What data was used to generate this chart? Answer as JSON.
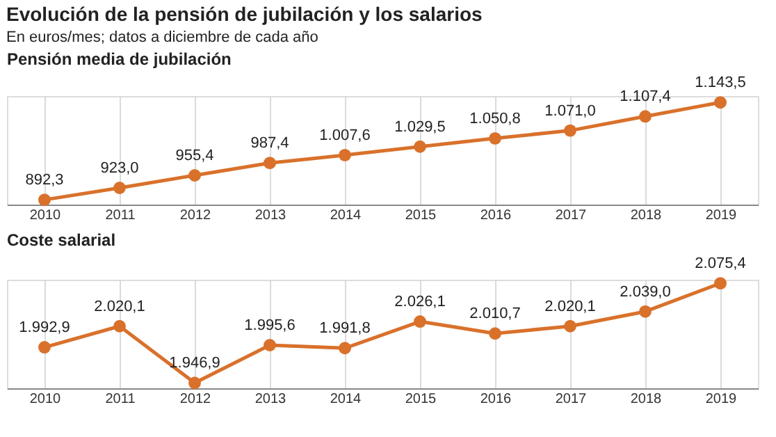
{
  "chart_data": [
    {
      "type": "other",
      "title": "Evolución de la pensión de jubilación y los salarios",
      "subtitle": "En euros/mes; datos a diciembre de cada año"
    },
    {
      "type": "line",
      "title": "Pensión media de jubilación",
      "categories": [
        "2010",
        "2011",
        "2012",
        "2013",
        "2014",
        "2015",
        "2016",
        "2017",
        "2018",
        "2019"
      ],
      "values": [
        892.3,
        923.0,
        955.4,
        987.4,
        1007.6,
        1029.5,
        1050.8,
        1071.0,
        1107.4,
        1143.5
      ],
      "value_labels": [
        "892,3",
        "923,0",
        "955,4",
        "987,4",
        "1.007,6",
        "1.029,5",
        "1.050,8",
        "1.071,0",
        "1.107,4",
        "1.143,5"
      ],
      "color": "#d9712b",
      "marker": "circle",
      "grid": "x"
    },
    {
      "type": "line",
      "title": "Coste salarial",
      "categories": [
        "2010",
        "2011",
        "2012",
        "2013",
        "2014",
        "2015",
        "2016",
        "2017",
        "2018",
        "2019"
      ],
      "values": [
        1992.9,
        2020.1,
        1946.9,
        1995.6,
        1991.8,
        2026.1,
        2010.7,
        2020.1,
        2039.0,
        2075.4
      ],
      "value_labels": [
        "1.992,9",
        "2.020,1",
        "1.946,9",
        "1.995,6",
        "1.991,8",
        "2.026,1",
        "2.010,7",
        "2.020,1",
        "2.039,0",
        "2.075,4"
      ],
      "color": "#d9712b",
      "marker": "circle",
      "grid": "x"
    }
  ]
}
